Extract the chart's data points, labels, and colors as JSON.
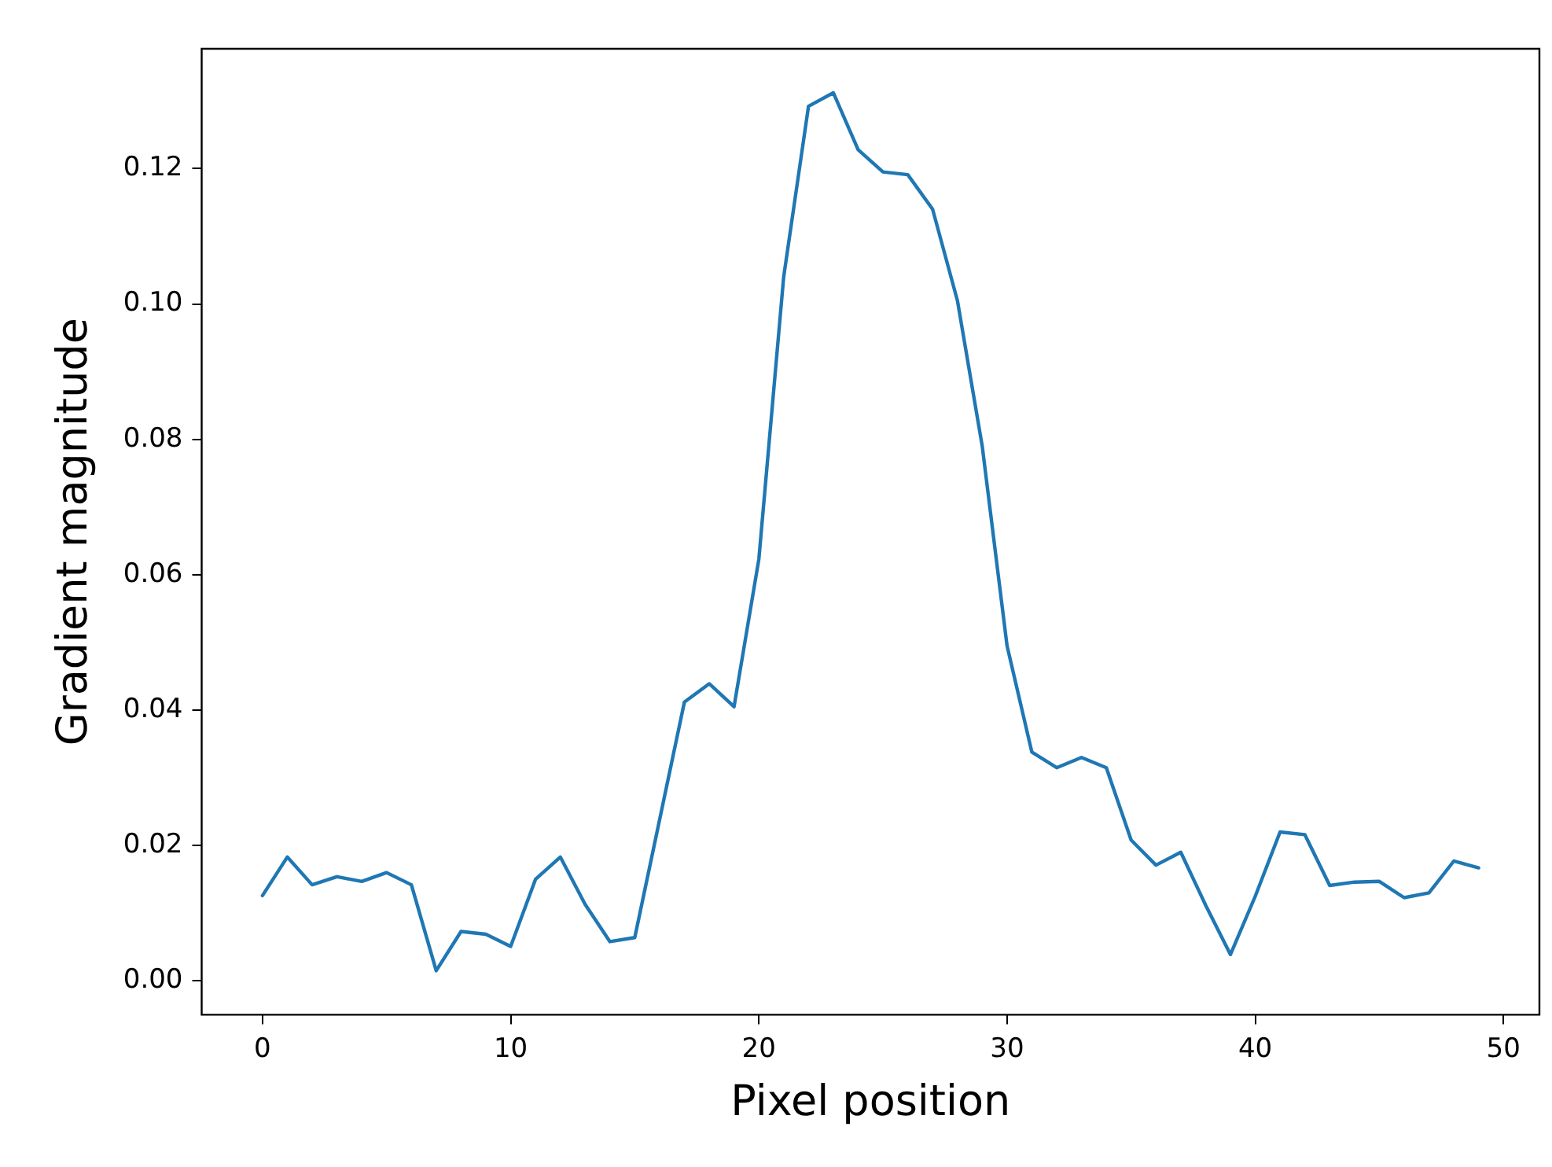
{
  "chart_data": {
    "type": "line",
    "xlabel": "Pixel position",
    "ylabel": "Gradient magnitude",
    "x": [
      0,
      1,
      2,
      3,
      4,
      5,
      6,
      7,
      8,
      9,
      10,
      11,
      12,
      13,
      14,
      15,
      16,
      17,
      18,
      19,
      20,
      21,
      22,
      23,
      24,
      25,
      26,
      27,
      28,
      29,
      30,
      31,
      32,
      33,
      34,
      35,
      36,
      37,
      38,
      39,
      40,
      41,
      42,
      43,
      44,
      45,
      46,
      47,
      48,
      49
    ],
    "series": [
      {
        "color": "#1f77b4",
        "values": [
          0.0126,
          0.0183,
          0.0142,
          0.0154,
          0.0147,
          0.016,
          0.0142,
          0.0015,
          0.0073,
          0.0069,
          0.0051,
          0.015,
          0.0183,
          0.0113,
          0.0058,
          0.0064,
          0.0238,
          0.0412,
          0.0439,
          0.0405,
          0.0623,
          0.104,
          0.1292,
          0.1312,
          0.1228,
          0.1195,
          0.1191,
          0.114,
          0.1005,
          0.079,
          0.0495,
          0.0338,
          0.0315,
          0.033,
          0.0315,
          0.0208,
          0.0171,
          0.019,
          0.0112,
          0.0039,
          0.0125,
          0.022,
          0.0216,
          0.0141,
          0.0146,
          0.0147,
          0.0123,
          0.013,
          0.0177,
          0.0167
        ]
      }
    ],
    "xlim": [
      -2.45,
      51.45
    ],
    "xticks": [
      0,
      10,
      20,
      30,
      40,
      50
    ],
    "ylim": [
      -0.005,
      0.1377
    ],
    "yticks": [
      {
        "value": 0,
        "label": "0.00"
      },
      {
        "value": 0.02,
        "label": "0.02"
      },
      {
        "value": 0.04,
        "label": "0.04"
      },
      {
        "value": 0.06,
        "label": "0.06"
      },
      {
        "value": 0.08,
        "label": "0.08"
      },
      {
        "value": 0.1,
        "label": "0.10"
      },
      {
        "value": 0.12,
        "label": "0.12"
      }
    ],
    "grid": false,
    "legend": false,
    "marker": "none",
    "line_style": "solid"
  }
}
